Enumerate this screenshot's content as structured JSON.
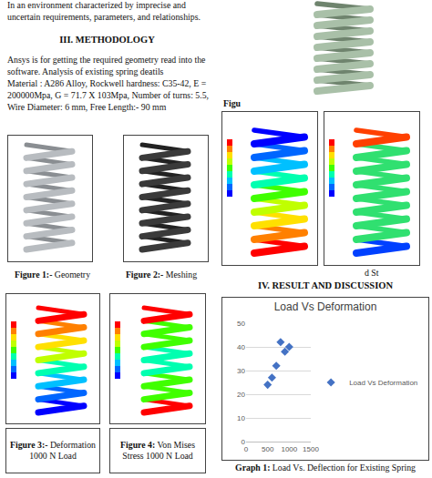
{
  "page": {
    "intro_lines": [
      "In an environment characterized by imprecise and",
      "uncertain requirements, parameters, and relationships."
    ],
    "methodology": {
      "heading": "III. METHODOLOGY",
      "lines": [
        "Ansys is for getting the required geometry read into the",
        "software. Analysis of existing spring deatils",
        "Material : A286 Alloy, Rockwell hardness: C35-42, E =",
        "200000Mpa, G = 71.7 X 103Mpa, Number of turns: 5.5,",
        "Wire Diameter: 6 mm, Free Length:- 90 mm"
      ]
    },
    "figures": [
      {
        "label": "Figure 1:-",
        "lines": [
          "Geometry"
        ]
      },
      {
        "label": "Figure 2:-",
        "lines": [
          "Meshing"
        ]
      },
      {
        "label": "Figure 3:-",
        "lines": [
          "Deformation",
          "1000 N Load"
        ]
      },
      {
        "label": "Figure 4:",
        "lines": [
          "Von Mises",
          "Stress 1000 N Load"
        ]
      }
    ],
    "fragments": [
      "Figu",
      "d St"
    ],
    "results": {
      "heading": "IV. RESULT AND DISCUSSION"
    },
    "graph_caption": {
      "label": "Graph 1:",
      "text": "Load Vs. Deflection for Existing Spring"
    }
  },
  "chart_data": {
    "type": "scatter",
    "title": "Load Vs Deformation",
    "x": [
      500,
      600,
      700,
      800,
      900,
      1000
    ],
    "series": [
      {
        "name": "Load Vs Deformation",
        "color": "#4472c4",
        "marker": "diamond",
        "values": [
          24,
          27,
          32,
          42,
          38,
          40
        ]
      }
    ],
    "xlim": [
      0,
      1500
    ],
    "xticks": [
      0,
      500,
      1000,
      1500
    ],
    "ylim": [
      0,
      50
    ],
    "yticks": [
      0,
      10,
      20,
      30,
      40,
      50
    ],
    "grid": true,
    "legend": "right"
  }
}
